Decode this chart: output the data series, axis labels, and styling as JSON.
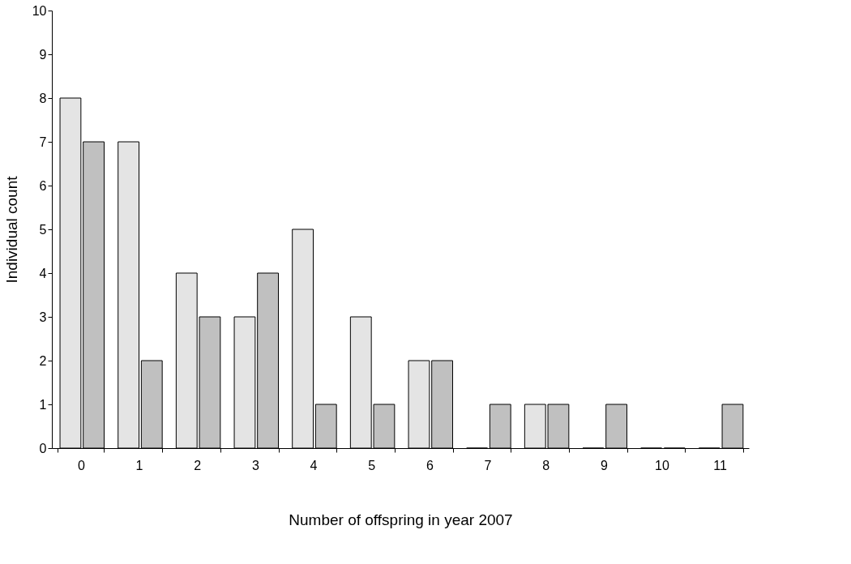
{
  "chart_data": {
    "type": "bar",
    "xlabel": "Number of offspring in year 2007",
    "ylabel": "Individual count",
    "categories": [
      "0",
      "1",
      "2",
      "3",
      "4",
      "5",
      "6",
      "7",
      "8",
      "9",
      "10",
      "11"
    ],
    "series": [
      {
        "color": "#e4e4e4",
        "values": [
          8,
          7,
          4,
          3,
          5,
          3,
          2,
          0,
          1,
          0,
          0,
          0
        ]
      },
      {
        "color": "#c0c0c0",
        "values": [
          7,
          2,
          3,
          4,
          1,
          1,
          2,
          1,
          1,
          1,
          0,
          1
        ]
      }
    ],
    "ylim": [
      0,
      10
    ],
    "yticks": [
      0,
      1,
      2,
      3,
      4,
      5,
      6,
      7,
      8,
      9,
      10
    ],
    "grid": false,
    "legend": false
  }
}
